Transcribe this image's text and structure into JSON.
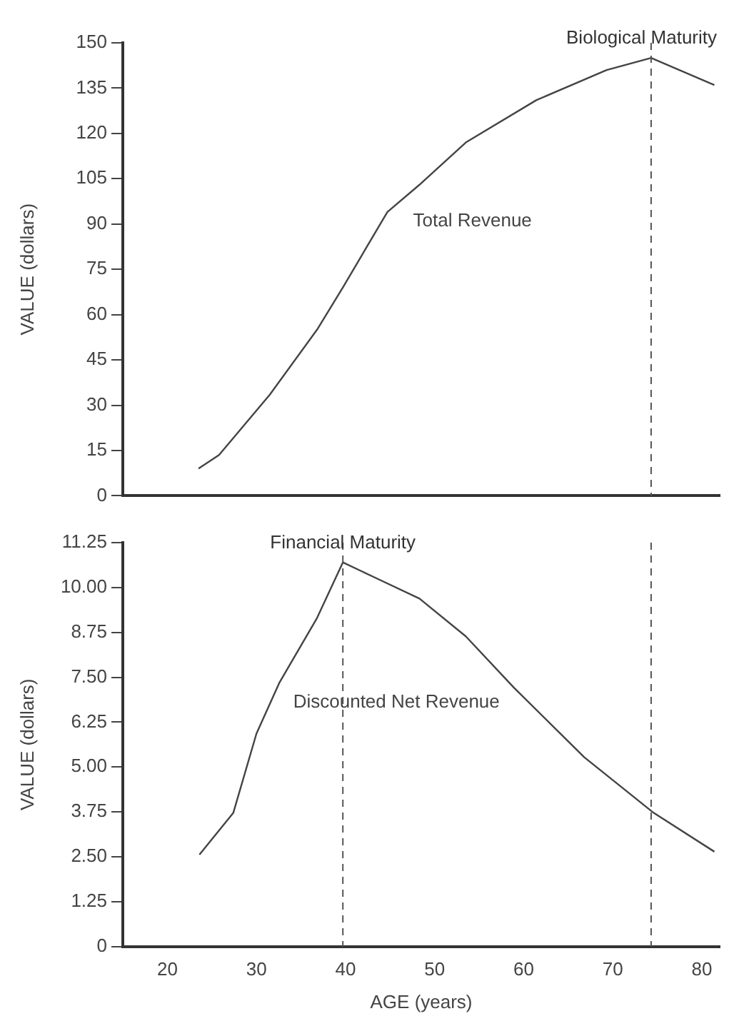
{
  "chart_data": [
    {
      "type": "line",
      "ylabel": "VALUE (dollars)",
      "xlim": [
        15,
        82
      ],
      "xticks": [
        20,
        30,
        40,
        50,
        60,
        70,
        80
      ],
      "ylim": [
        0,
        150
      ],
      "yticks": [
        0,
        15,
        30,
        45,
        60,
        75,
        90,
        105,
        120,
        135,
        150
      ],
      "tick_labels": "y",
      "grid": false,
      "legend": false,
      "marker": "none",
      "series": [
        {
          "name": "Total Revenue",
          "color": "#444444",
          "x": [
            23.5,
            25.8,
            31.5,
            36.8,
            39.7,
            44.7,
            48.3,
            53.5,
            61.4,
            69.3,
            74.3,
            81.4
          ],
          "values": [
            9,
            13.5,
            33.5,
            55,
            69,
            94,
            103,
            117,
            131,
            141,
            145,
            136
          ]
        }
      ],
      "ref_lines": [
        {
          "axis": "x",
          "value": 74.3,
          "color": "#555555",
          "line_style": "dashed"
        }
      ],
      "annotations": [
        {
          "text": "Biological Maturity",
          "x": 74.3,
          "y": 145
        }
      ]
    },
    {
      "type": "line",
      "ylabel": "VALUE (dollars)",
      "xlabel": "AGE (years)",
      "xlim": [
        15,
        82
      ],
      "xticks": [
        20,
        30,
        40,
        50,
        60,
        70,
        80
      ],
      "ylim": [
        0,
        11.25
      ],
      "yticks": [
        {
          "value": 0,
          "label": "0"
        },
        {
          "value": 1.25,
          "label": "1.25"
        },
        {
          "value": 2.5,
          "label": "2.50"
        },
        {
          "value": 3.75,
          "label": "3.75"
        },
        {
          "value": 5,
          "label": "5.00"
        },
        {
          "value": 6.25,
          "label": "6.25"
        },
        {
          "value": 7.5,
          "label": "7.50"
        },
        {
          "value": 8.75,
          "label": "8.75"
        },
        {
          "value": 10,
          "label": "10.00"
        },
        {
          "value": 11.25,
          "label": "11.25"
        }
      ],
      "grid": false,
      "legend": false,
      "marker": "none",
      "series": [
        {
          "name": "Discounted Net Revenue",
          "color": "#444444",
          "x": [
            23.6,
            27.4,
            30,
            32.6,
            36.8,
            39.7,
            43.1,
            48.3,
            53.5,
            58.9,
            66.8,
            74.6,
            81.4
          ],
          "values": [
            2.56,
            3.72,
            5.93,
            7.36,
            9.15,
            10.7,
            10.3,
            9.69,
            8.64,
            7.21,
            5.27,
            3.72,
            2.64
          ]
        }
      ],
      "ref_lines": [
        {
          "axis": "x",
          "value": 39.7,
          "color": "#555555",
          "line_style": "dashed"
        },
        {
          "axis": "x",
          "value": 74.3,
          "color": "#555555",
          "line_style": "dashed"
        }
      ],
      "annotations": [
        {
          "text": "Financial Maturity",
          "x": 39.7,
          "y": 10.7
        }
      ]
    }
  ]
}
